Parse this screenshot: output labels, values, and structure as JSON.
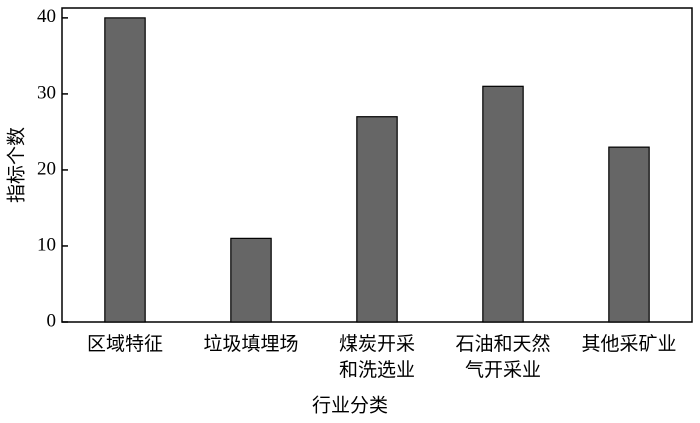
{
  "chart_data": {
    "type": "bar",
    "x_label": "行业分类",
    "y_label": "指标个数",
    "categories": [
      "区域特征",
      "垃圾填埋场",
      "煤炭开采\n和洗选业",
      "石油和天然\n气开采业",
      "其他采矿业"
    ],
    "values": [
      40,
      11,
      27,
      31,
      23
    ],
    "color": "#666666",
    "ylim": [
      0,
      41.3
    ],
    "yticks": [
      0,
      10,
      20,
      30,
      40
    ]
  }
}
